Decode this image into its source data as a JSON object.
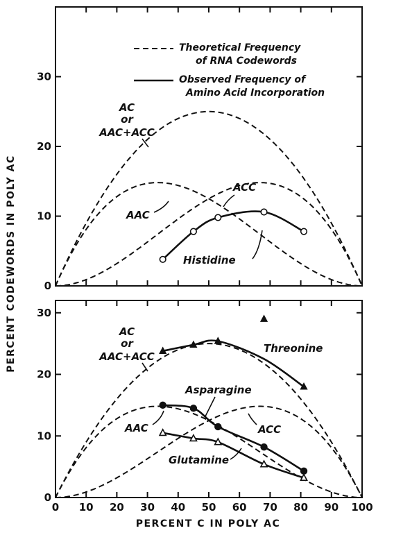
{
  "chart_data": [
    {
      "type": "line",
      "ylabel": "PERCENT CODEWORDS IN POLY AC",
      "xlabel": "",
      "xlim": [
        0,
        100
      ],
      "ylim": [
        0,
        40
      ],
      "y_ticks": [
        "0",
        "10",
        "20",
        "30"
      ],
      "legend": {
        "placement": "top",
        "entries": [
          {
            "style": "dashed",
            "line1": "Theoretical Frequency",
            "line2": "of RNA Codewords"
          },
          {
            "style": "solid",
            "line1": "Observed Frequency of",
            "line2": "Amino Acid Incorporation"
          }
        ]
      },
      "theoretical_curves": [
        {
          "label_lines": [
            "AC",
            "or",
            "AAC+ACC"
          ],
          "formula": "100*p*(1-p)",
          "peak": [
            50,
            25
          ]
        },
        {
          "label_lines": [
            "AAC"
          ],
          "formula": "100*p*(1-p)^2",
          "peak": [
            33,
            14.8
          ]
        },
        {
          "label_lines": [
            "ACC"
          ],
          "formula": "100*p^2*(1-p)",
          "peak": [
            67,
            14.8
          ]
        }
      ],
      "series": [
        {
          "name": "Histidine",
          "marker": "open-circle",
          "x": [
            35,
            45,
            53,
            68,
            81
          ],
          "y": [
            3.8,
            7.8,
            9.8,
            10.6,
            7.8
          ]
        }
      ]
    },
    {
      "type": "line",
      "ylabel": "",
      "xlabel": "PERCENT C IN POLY AC",
      "xlim": [
        0,
        100
      ],
      "ylim": [
        0,
        32
      ],
      "x_ticks": [
        "0",
        "10",
        "20",
        "30",
        "40",
        "50",
        "60",
        "70",
        "80",
        "90",
        "100"
      ],
      "y_ticks": [
        "0",
        "10",
        "20",
        "30"
      ],
      "theoretical_curves": [
        {
          "label_lines": [
            "AC",
            "or",
            "AAC+ACC"
          ],
          "formula": "100*p*(1-p)",
          "peak": [
            50,
            25
          ]
        },
        {
          "label_lines": [
            "AAC"
          ],
          "formula": "100*p*(1-p)^2",
          "peak": [
            33,
            14.8
          ]
        },
        {
          "label_lines": [
            "ACC"
          ],
          "formula": "100*p^2*(1-p)",
          "peak": [
            67,
            14.8
          ]
        }
      ],
      "series": [
        {
          "name": "Threonine",
          "marker": "filled-triangle",
          "x": [
            35,
            45,
            53,
            68,
            81
          ],
          "y": [
            23.8,
            24.8,
            25.4,
            29,
            18
          ]
        },
        {
          "name": "Asparagine",
          "marker": "filled-circle",
          "x": [
            35,
            45,
            53,
            68,
            81
          ],
          "y": [
            15,
            14.5,
            11.5,
            8.2,
            4.3
          ]
        },
        {
          "name": "Glutamine",
          "marker": "open-triangle",
          "x": [
            35,
            45,
            53,
            68,
            81
          ],
          "y": [
            10.5,
            9.6,
            9,
            5.4,
            3.2
          ]
        }
      ]
    }
  ]
}
